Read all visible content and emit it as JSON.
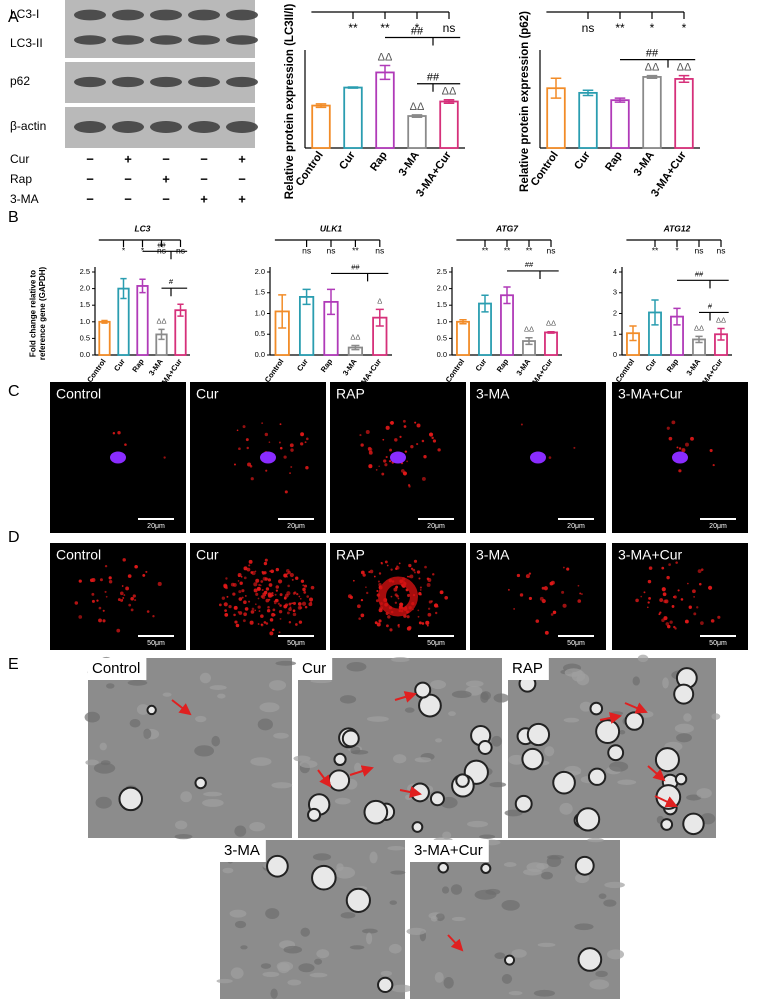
{
  "panels": [
    "A",
    "B",
    "C",
    "D",
    "E"
  ],
  "western_blot": {
    "bands": [
      "LC3-I",
      "LC3-II",
      "p62",
      "β-actin"
    ],
    "treatments": [
      {
        "label": "Cur",
        "marks": [
          "−",
          "+",
          "−",
          "−",
          "+"
        ]
      },
      {
        "label": "Rap",
        "marks": [
          "−",
          "−",
          "+",
          "−",
          "−"
        ]
      },
      {
        "label": "3-MA",
        "marks": [
          "−",
          "−",
          "−",
          "+",
          "+"
        ]
      }
    ]
  },
  "chart_data": [
    {
      "type": "bar",
      "ylabel": "Relative protein expression (LC3II/I)",
      "categories": [
        "Control",
        "Cur",
        "Rap",
        "3-MA",
        "3-MA+Cur"
      ],
      "colors": [
        "#f28c28",
        "#2a9db0",
        "#b03ab8",
        "#8a8a8a",
        "#d6307a"
      ],
      "values": [
        0.73,
        1.04,
        1.3,
        0.55,
        0.8
      ],
      "errors": [
        0.03,
        0.01,
        0.12,
        0.02,
        0.03
      ],
      "ylim": [
        0,
        1.6
      ],
      "significance": [
        null,
        "**",
        "**",
        "*",
        "ns"
      ],
      "vs_control": [
        null,
        null,
        "ΔΔ",
        "ΔΔ",
        "ΔΔ"
      ],
      "comparisons": [
        "##",
        "##"
      ]
    },
    {
      "type": "bar",
      "ylabel": "Relative protein expression (p62)",
      "categories": [
        "Control",
        "Cur",
        "Rap",
        "3-MA",
        "3-MA+Cur"
      ],
      "colors": [
        "#f28c28",
        "#2a9db0",
        "#b03ab8",
        "#8a8a8a",
        "#d6307a"
      ],
      "values": [
        0.9,
        0.83,
        0.72,
        1.07,
        1.04
      ],
      "errors": [
        0.15,
        0.04,
        0.03,
        0.02,
        0.05
      ],
      "ylim": [
        0,
        1.4
      ],
      "significance": [
        null,
        "ns",
        "**",
        "*",
        "*"
      ],
      "vs_control": [
        null,
        null,
        null,
        "ΔΔ",
        "ΔΔ"
      ],
      "comparisons": [
        "##"
      ]
    },
    {
      "type": "bar",
      "title": "LC3",
      "ylabel": [
        "Fold change relative to",
        "reference gene (GAPDH)"
      ],
      "categories": [
        "Control",
        "Cur",
        "Rap",
        "3-MA",
        "3-MA+Cur"
      ],
      "colors": [
        "#f28c28",
        "#2a9db0",
        "#b03ab8",
        "#8a8a8a",
        "#d6307a"
      ],
      "values": [
        1.0,
        2.0,
        2.08,
        0.62,
        1.35
      ],
      "errors": [
        0.04,
        0.3,
        0.2,
        0.15,
        0.18
      ],
      "ylim": [
        0,
        2.5
      ],
      "yticks": [
        {
          "value": 0,
          "label": "0.0"
        },
        {
          "value": 0.5,
          "label": "0.5"
        },
        {
          "value": 1,
          "label": "1.0"
        },
        {
          "value": 1.5,
          "label": "1.5"
        },
        {
          "value": 2,
          "label": "2.0"
        },
        {
          "value": 2.5,
          "label": "2.5"
        }
      ],
      "significance": [
        null,
        "*",
        "*",
        "ns",
        "ns"
      ],
      "vs_control": [
        null,
        null,
        null,
        "ΔΔ",
        null
      ],
      "comparisons": [
        "##",
        "#"
      ]
    },
    {
      "type": "bar",
      "title": "ULK1",
      "categories": [
        "Control",
        "Cur",
        "Rap",
        "3-MA",
        "3-MA+Cur"
      ],
      "colors": [
        "#f28c28",
        "#2a9db0",
        "#b03ab8",
        "#8a8a8a",
        "#d6307a"
      ],
      "values": [
        1.05,
        1.4,
        1.28,
        0.18,
        0.9
      ],
      "errors": [
        0.4,
        0.18,
        0.3,
        0.05,
        0.2
      ],
      "ylim": [
        0,
        2
      ],
      "yticks": [
        {
          "value": 0,
          "label": "0.0"
        },
        {
          "value": 0.5,
          "label": "0.5"
        },
        {
          "value": 1,
          "label": "1.0"
        },
        {
          "value": 1.5,
          "label": "1.5"
        },
        {
          "value": 2,
          "label": "2.0"
        }
      ],
      "significance": [
        null,
        "ns",
        "ns",
        "**",
        "ns"
      ],
      "vs_control": [
        null,
        null,
        null,
        "ΔΔ",
        "Δ"
      ],
      "comparisons": [
        "##"
      ]
    },
    {
      "type": "bar",
      "title": "ATG7",
      "categories": [
        "Control",
        "Cur",
        "Rap",
        "3-MA",
        "3-MA+Cur"
      ],
      "colors": [
        "#f28c28",
        "#2a9db0",
        "#b03ab8",
        "#8a8a8a",
        "#d6307a"
      ],
      "values": [
        1.0,
        1.55,
        1.8,
        0.42,
        0.68
      ],
      "errors": [
        0.06,
        0.25,
        0.25,
        0.1,
        0.02
      ],
      "ylim": [
        0,
        2.5
      ],
      "yticks": [
        {
          "value": 0,
          "label": "0.0"
        },
        {
          "value": 0.5,
          "label": "0.5"
        },
        {
          "value": 1,
          "label": "1.0"
        },
        {
          "value": 1.5,
          "label": "1.5"
        },
        {
          "value": 2,
          "label": "2.0"
        },
        {
          "value": 2.5,
          "label": "2.5"
        }
      ],
      "significance": [
        null,
        "**",
        "**",
        "**",
        "ns"
      ],
      "vs_control": [
        null,
        null,
        null,
        "ΔΔ",
        "ΔΔ"
      ],
      "comparisons": [
        "##"
      ]
    },
    {
      "type": "bar",
      "title": "ATG12",
      "categories": [
        "Control",
        "Cur",
        "Rap",
        "3-MA",
        "3-MA+Cur"
      ],
      "colors": [
        "#f28c28",
        "#2a9db0",
        "#b03ab8",
        "#8a8a8a",
        "#d6307a"
      ],
      "values": [
        1.05,
        2.05,
        1.85,
        0.75,
        1.0
      ],
      "errors": [
        0.35,
        0.6,
        0.4,
        0.15,
        0.28
      ],
      "ylim": [
        0,
        4
      ],
      "yticks": [
        0,
        1,
        2,
        3,
        4
      ],
      "significance": [
        null,
        "**",
        "*",
        "ns",
        "ns"
      ],
      "vs_control": [
        null,
        null,
        null,
        "ΔΔ",
        "ΔΔ"
      ],
      "comparisons": [
        "##",
        "#"
      ]
    }
  ],
  "immunofluorescence": {
    "labels": [
      "Control",
      "Cur",
      "RAP",
      "3-MA",
      "3-MA+Cur"
    ],
    "scale_bar": "20μm"
  },
  "lc3_puncta": {
    "labels": [
      "Control",
      "Cur",
      "RAP",
      "3-MA",
      "3-MA+Cur"
    ],
    "scale_bar": "50μm"
  },
  "tem": {
    "labels": [
      "Control",
      "Cur",
      "RAP",
      "3-MA",
      "3-MA+Cur"
    ]
  }
}
